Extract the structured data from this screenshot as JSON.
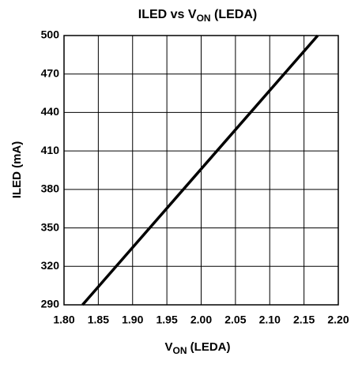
{
  "chart_data": {
    "type": "line",
    "title": [
      "ILED vs V",
      "ON",
      " (LEDA)"
    ],
    "xlabel": [
      "V",
      "ON",
      " (LEDA)"
    ],
    "ylabel": "ILED (mA)",
    "x": [
      1.827,
      2.17
    ],
    "values": [
      290,
      500
    ],
    "color": "#000000",
    "xlim": [
      1.8,
      2.2
    ],
    "xticks": [
      {
        "value": 1.8,
        "label": "1.80"
      },
      {
        "value": 1.85,
        "label": "1.85"
      },
      {
        "value": 1.9,
        "label": "1.90"
      },
      {
        "value": 1.95,
        "label": "1.95"
      },
      {
        "value": 2.0,
        "label": "2.00"
      },
      {
        "value": 2.05,
        "label": "2.05"
      },
      {
        "value": 2.1,
        "label": "2.10"
      },
      {
        "value": 2.15,
        "label": "2.15"
      },
      {
        "value": 2.2,
        "label": "2.20"
      }
    ],
    "ylim": [
      290,
      500
    ],
    "yticks": [
      290,
      320,
      350,
      380,
      410,
      440,
      470,
      500
    ],
    "grid": true
  }
}
